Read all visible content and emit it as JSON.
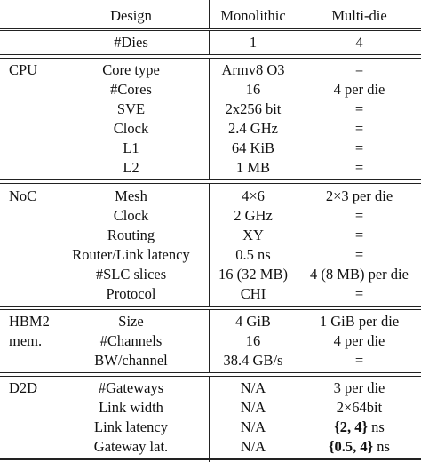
{
  "header": {
    "design": "Design",
    "monolithic": "Monolithic",
    "multi_die": "Multi-die"
  },
  "dies_row": {
    "label": "#Dies",
    "monolithic": "1",
    "multi_die": "4"
  },
  "sections": [
    {
      "group": "CPU",
      "rows": [
        {
          "label": "Core type",
          "monolithic": "Armv8 O3",
          "multi_die": "="
        },
        {
          "label": "#Cores",
          "monolithic": "16",
          "multi_die": "4 per die"
        },
        {
          "label": "SVE",
          "monolithic": "2x256 bit",
          "multi_die": "="
        },
        {
          "label": "Clock",
          "monolithic": "2.4 GHz",
          "multi_die": "="
        },
        {
          "label": "L1",
          "monolithic": "64 KiB",
          "multi_die": "="
        },
        {
          "label": "L2",
          "monolithic": "1 MB",
          "multi_die": "="
        }
      ]
    },
    {
      "group": "NoC",
      "rows": [
        {
          "label": "Mesh",
          "monolithic": "4×6",
          "multi_die": "2×3 per die"
        },
        {
          "label": "Clock",
          "monolithic": "2 GHz",
          "multi_die": "="
        },
        {
          "label": "Routing",
          "monolithic": "XY",
          "multi_die": "="
        },
        {
          "label": "Router/Link latency",
          "monolithic": "0.5 ns",
          "multi_die": "="
        },
        {
          "label": "#SLC slices",
          "monolithic": "16 (32 MB)",
          "multi_die": "4 (8 MB) per die"
        },
        {
          "label": "Protocol",
          "monolithic": "CHI",
          "multi_die": "="
        }
      ]
    },
    {
      "group": "HBM2",
      "group2": "mem.",
      "rows": [
        {
          "label": "Size",
          "monolithic": "4 GiB",
          "multi_die": "1 GiB per die"
        },
        {
          "label": "#Channels",
          "monolithic": "16",
          "multi_die": "4 per die"
        },
        {
          "label": "BW/channel",
          "monolithic": "38.4 GB/s",
          "multi_die": "="
        }
      ]
    },
    {
      "group": "D2D",
      "rows": [
        {
          "label": "#Gateways",
          "monolithic": "N/A",
          "multi_die": "3 per die"
        },
        {
          "label": "Link width",
          "monolithic": "N/A",
          "multi_die": "2×64bit"
        },
        {
          "label": "Link latency",
          "monolithic": "N/A",
          "multi_die_bold": "{2, 4}",
          "multi_die_suffix": " ns"
        },
        {
          "label": "Gateway lat.",
          "monolithic": "N/A",
          "multi_die_bold": "{0.5, 4}",
          "multi_die_suffix": " ns"
        }
      ]
    }
  ]
}
